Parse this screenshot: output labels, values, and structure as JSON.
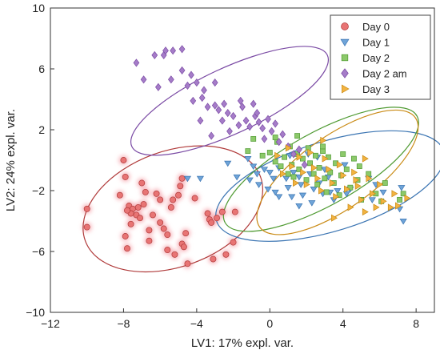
{
  "chart_data": {
    "type": "scatter",
    "title": "",
    "xlabel": "LV1: 17% expl. var.",
    "ylabel": "LV2: 24% expl. var.",
    "xlim": [
      -12,
      9
    ],
    "ylim": [
      -10,
      10
    ],
    "xticks": [
      -12,
      -8,
      -4,
      0,
      4,
      8
    ],
    "yticks": [
      -10,
      -6,
      -2,
      2,
      6,
      10
    ],
    "xtick_labels": [
      "−12",
      "−8",
      "−4",
      "0",
      "4",
      "8"
    ],
    "ytick_labels": [
      "−10",
      "−6",
      "−2",
      "2",
      "6",
      "10"
    ],
    "grid": false,
    "legend_position": "top-right",
    "series": [
      {
        "name": "Day 0",
        "marker": "circle",
        "color": "#e87474",
        "edge": "#b03a3a",
        "ellipse": {
          "cx": -5.3,
          "cy": -3.2,
          "rx": 5.1,
          "ry": 3.8,
          "angle": -20
        },
        "points": [
          [
            -8,
            0
          ],
          [
            -10,
            -3.2
          ],
          [
            -10,
            -4.4
          ],
          [
            -8.2,
            -2.3
          ],
          [
            -7.9,
            -1.1
          ],
          [
            -7.7,
            -3
          ],
          [
            -7.5,
            -3.2
          ],
          [
            -7.3,
            -3.6
          ],
          [
            -7.6,
            -3.5
          ],
          [
            -7.2,
            -3.1
          ],
          [
            -7.6,
            -4.2
          ],
          [
            -7.8,
            -3.3
          ],
          [
            -7.9,
            -5
          ],
          [
            -7.8,
            -5.8
          ],
          [
            -7.1,
            -3.8
          ],
          [
            -6.9,
            -2.9
          ],
          [
            -6.8,
            -2.1
          ],
          [
            -6.6,
            -4.6
          ],
          [
            -6.6,
            -5.3
          ],
          [
            -6.4,
            -3.6
          ],
          [
            -6,
            -2.6
          ],
          [
            -6,
            -4.1
          ],
          [
            -5.8,
            -4.5
          ],
          [
            -5.6,
            -4.9
          ],
          [
            -5.6,
            -5.9
          ],
          [
            -5.4,
            -3.1
          ],
          [
            -5.3,
            -2.6
          ],
          [
            -5.2,
            -6.2
          ],
          [
            -4.8,
            -5.5
          ],
          [
            -4.7,
            -5.7
          ],
          [
            -4.6,
            -4.8
          ],
          [
            -4.9,
            -1.7
          ],
          [
            -4.8,
            -1.2
          ],
          [
            -4.1,
            -2.5
          ],
          [
            -4.5,
            -6.8
          ],
          [
            -3.4,
            -3.5
          ],
          [
            -3.3,
            -3.9
          ],
          [
            -3.2,
            -4.1
          ],
          [
            -2.9,
            -3.8
          ],
          [
            -3.1,
            -6.5
          ],
          [
            -2.6,
            -3.4
          ],
          [
            -2.4,
            -6.2
          ],
          [
            -1.9,
            -3.4
          ],
          [
            -2,
            -5.4
          ],
          [
            -7,
            -1.5
          ],
          [
            -6.2,
            -2.2
          ],
          [
            -5,
            -2.3
          ]
        ]
      },
      {
        "name": "Day 1",
        "marker": "triangle-down",
        "color": "#6fa4d8",
        "edge": "#3a74b2",
        "ellipse": {
          "cx": 3.3,
          "cy": -1.7,
          "rx": 6.5,
          "ry": 2.95,
          "angle": -17
        },
        "points": [
          [
            -4.5,
            -1.2
          ],
          [
            -3.8,
            -1.2
          ],
          [
            -2.3,
            -0.2
          ],
          [
            -1.8,
            -1.1
          ],
          [
            -1.2,
            0.1
          ],
          [
            -1.1,
            -1.3
          ],
          [
            -0.9,
            -0.4
          ],
          [
            -0.6,
            -1.6
          ],
          [
            -0.3,
            -0.6
          ],
          [
            -0.1,
            -1.9
          ],
          [
            0,
            -0.8
          ],
          [
            0.2,
            -1.2
          ],
          [
            0.3,
            -2.1
          ],
          [
            0.5,
            -0.5
          ],
          [
            0.5,
            -2.4
          ],
          [
            0.9,
            -1.2
          ],
          [
            1,
            -1.8
          ],
          [
            1.1,
            0.3
          ],
          [
            1.2,
            -2.4
          ],
          [
            1.3,
            -0.8
          ],
          [
            1.6,
            -1.1
          ],
          [
            1.7,
            -1.6
          ],
          [
            1.8,
            -2.3
          ],
          [
            2.1,
            0.4
          ],
          [
            2.2,
            -0.9
          ],
          [
            2.4,
            -1.9
          ],
          [
            2.6,
            0.2
          ],
          [
            2.7,
            -1.5
          ],
          [
            2.9,
            -2.2
          ],
          [
            3,
            -0.6
          ],
          [
            3.2,
            -1.1
          ],
          [
            3.3,
            -2.1
          ],
          [
            3.5,
            -2.6
          ],
          [
            3.7,
            -2
          ],
          [
            4.1,
            -0.3
          ],
          [
            4.2,
            -2.2
          ],
          [
            4.4,
            -1.9
          ],
          [
            5.4,
            -1.2
          ],
          [
            5.6,
            -2.6
          ],
          [
            5.8,
            -1.6
          ],
          [
            6.2,
            -2.1
          ],
          [
            7.2,
            -1.8
          ],
          [
            7.1,
            -3.2
          ],
          [
            7.3,
            -4
          ],
          [
            1.6,
            -3
          ],
          [
            2.3,
            -2.8
          ],
          [
            -0.7,
            -0.9
          ]
        ]
      },
      {
        "name": "Day 2",
        "marker": "square",
        "color": "#8cc96a",
        "edge": "#4f9a32",
        "ellipse": {
          "cx": 2.8,
          "cy": -0.6,
          "rx": 6.0,
          "ry": 2.4,
          "angle": -29
        },
        "points": [
          [
            -1.2,
            0.6
          ],
          [
            -0.4,
            0.3
          ],
          [
            0,
            0.5
          ],
          [
            0.3,
            -0.1
          ],
          [
            0.4,
            1.2
          ],
          [
            0.6,
            -0.4
          ],
          [
            0.8,
            0.2
          ],
          [
            1,
            -0.9
          ],
          [
            1.1,
            0.9
          ],
          [
            1.2,
            -0.3
          ],
          [
            1.3,
            -1.1
          ],
          [
            1.5,
            0.4
          ],
          [
            1.6,
            -0.6
          ],
          [
            1.8,
            0.1
          ],
          [
            2,
            -1.3
          ],
          [
            2.1,
            0.8
          ],
          [
            2.2,
            -0.2
          ],
          [
            2.4,
            -0.9
          ],
          [
            2.5,
            0.3
          ],
          [
            2.6,
            -1.6
          ],
          [
            2.7,
            -0.5
          ],
          [
            2.9,
            0.6
          ],
          [
            3,
            -1.2
          ],
          [
            3.1,
            -2.1
          ],
          [
            3.2,
            0.2
          ],
          [
            3.3,
            -0.8
          ],
          [
            3.5,
            -1.5
          ],
          [
            3.6,
            -0.2
          ],
          [
            3.8,
            -2.3
          ],
          [
            3.9,
            -1
          ],
          [
            4,
            0.4
          ],
          [
            4.2,
            -0.6
          ],
          [
            4.4,
            -1.8
          ],
          [
            4.6,
            0.1
          ],
          [
            4.8,
            -1.3
          ],
          [
            5,
            -2.6
          ],
          [
            5.4,
            -0.9
          ],
          [
            5.8,
            -2.2
          ],
          [
            6.1,
            -2.7
          ],
          [
            6.3,
            -1.5
          ],
          [
            7.1,
            -2.6
          ],
          [
            7.3,
            -2.2
          ],
          [
            1.5,
            1.6
          ],
          [
            0.3,
            1.5
          ],
          [
            2.9,
            0.9
          ],
          [
            -0.9,
            1.4
          ],
          [
            4.9,
            -0.4
          ]
        ]
      },
      {
        "name": "Day 2 am",
        "marker": "diamond",
        "color": "#a57cc8",
        "edge": "#7a4aa4",
        "ellipse": {
          "cx": -2.2,
          "cy": 3.9,
          "rx": 5.9,
          "ry": 2.15,
          "angle": -25
        },
        "points": [
          [
            -7.3,
            6.4
          ],
          [
            -6.9,
            5.3
          ],
          [
            -6.3,
            6.9
          ],
          [
            -6.1,
            4.8
          ],
          [
            -5.8,
            6.9
          ],
          [
            -5.7,
            7.2
          ],
          [
            -5.3,
            7.2
          ],
          [
            -5.4,
            5.3
          ],
          [
            -4.8,
            7.3
          ],
          [
            -4.5,
            4.9
          ],
          [
            -4.3,
            5.6
          ],
          [
            -4,
            5.1
          ],
          [
            -4.2,
            3.9
          ],
          [
            -3.7,
            4.1
          ],
          [
            -3.6,
            4.6
          ],
          [
            -3.4,
            3.5
          ],
          [
            -3,
            3.6
          ],
          [
            -2.8,
            3.3
          ],
          [
            -2.6,
            2.6
          ],
          [
            -2.5,
            3.7
          ],
          [
            -2.3,
            3.1
          ],
          [
            -2,
            2.9
          ],
          [
            -1.7,
            2.3
          ],
          [
            -1.5,
            3.5
          ],
          [
            -1.3,
            2.6
          ],
          [
            -1.1,
            2.2
          ],
          [
            -0.9,
            3.7
          ],
          [
            -0.8,
            2.9
          ],
          [
            -0.6,
            2.5
          ],
          [
            -0.4,
            2.1
          ],
          [
            -0.3,
            1.4
          ],
          [
            -0.1,
            2.7
          ],
          [
            0.1,
            1.9
          ],
          [
            0.3,
            2.4
          ],
          [
            0.5,
            1.2
          ],
          [
            0.7,
            1.7
          ],
          [
            1,
            0.9
          ],
          [
            1.3,
            0.4
          ],
          [
            1.6,
            0.7
          ],
          [
            1.9,
            -0.3
          ],
          [
            -3.8,
            2.6
          ],
          [
            -3.2,
            1.6
          ],
          [
            -2.2,
            1.9
          ],
          [
            -3,
            5.1
          ],
          [
            -1.6,
            3.9
          ],
          [
            -0.7,
            3.1
          ],
          [
            -4.8,
            5.9
          ]
        ]
      },
      {
        "name": "Day 3",
        "marker": "triangle-right",
        "color": "#f2b341",
        "edge": "#c98a14",
        "ellipse": {
          "cx": 3.7,
          "cy": -0.8,
          "rx": 5.2,
          "ry": 2.4,
          "angle": -35
        },
        "points": [
          [
            0.4,
            0.3
          ],
          [
            0.7,
            -0.9
          ],
          [
            1,
            0.8
          ],
          [
            1.2,
            -0.4
          ],
          [
            1.4,
            -1.5
          ],
          [
            1.6,
            0.2
          ],
          [
            1.8,
            -0.8
          ],
          [
            2,
            -1.6
          ],
          [
            2.2,
            0.5
          ],
          [
            2.4,
            -0.5
          ],
          [
            2.6,
            -1.2
          ],
          [
            2.8,
            -2
          ],
          [
            3,
            0.1
          ],
          [
            3.2,
            -0.6
          ],
          [
            3.4,
            -1.5
          ],
          [
            3.6,
            -2.4
          ],
          [
            3.8,
            -0.3
          ],
          [
            4,
            -1
          ],
          [
            4.2,
            -1.9
          ],
          [
            4.4,
            -3.1
          ],
          [
            4.6,
            -0.8
          ],
          [
            4.8,
            -1.7
          ],
          [
            5,
            -2.6
          ],
          [
            5.2,
            -3.4
          ],
          [
            5.4,
            -1.2
          ],
          [
            5.6,
            -2.2
          ],
          [
            5.8,
            -3.1
          ],
          [
            6,
            -1.6
          ],
          [
            6.2,
            -2.7
          ],
          [
            6.6,
            -3.1
          ],
          [
            7,
            -3
          ],
          [
            7.5,
            -2.5
          ],
          [
            6.8,
            -2.2
          ],
          [
            3.5,
            -3.8
          ],
          [
            4.7,
            -1.3
          ],
          [
            2.9,
            1.3
          ],
          [
            5.2,
            0.1
          ]
        ]
      }
    ]
  }
}
